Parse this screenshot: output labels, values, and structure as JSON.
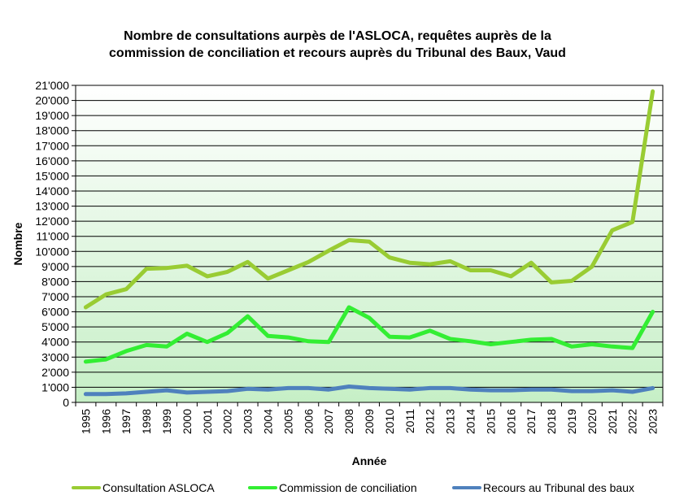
{
  "chart_data": {
    "type": "line",
    "title_lines": [
      "Nombre de consultations aurpès de l'ASLOCA, requêtes auprès de la",
      "commission de conciliation et recours auprès du Tribunal des Baux, Vaud"
    ],
    "xlabel": "Année",
    "ylabel": "Nombre",
    "ylim": [
      0,
      21000
    ],
    "ytick_step": 1000,
    "ytick_labels": [
      "0",
      "1'000",
      "2'000",
      "3'000",
      "4'000",
      "5'000",
      "6'000",
      "7'000",
      "8'000",
      "9'000",
      "10'000",
      "11'000",
      "12'000",
      "13'000",
      "14'000",
      "15'000",
      "16'000",
      "17'000",
      "18'000",
      "19'000",
      "20'000",
      "21'000"
    ],
    "grid": true,
    "legend_position": "bottom",
    "categories": [
      "1995",
      "1996",
      "1997",
      "1998",
      "1999",
      "2000",
      "2001",
      "2002",
      "2003",
      "2004",
      "2005",
      "2006",
      "2007",
      "2008",
      "2009",
      "2010",
      "2011",
      "2012",
      "2013",
      "2014",
      "2015",
      "2016",
      "2017",
      "2018",
      "2019",
      "2020",
      "2021",
      "2022",
      "2023"
    ],
    "series": [
      {
        "name": "Consultation ASLOCA",
        "color": "#99CC33",
        "values": [
          6300,
          7150,
          7500,
          8850,
          8900,
          9050,
          8350,
          8650,
          9300,
          8200,
          8750,
          9300,
          10050,
          10750,
          10650,
          9600,
          9250,
          9150,
          9350,
          8750,
          8750,
          8350,
          9250,
          7950,
          8050,
          9000,
          11400,
          11950,
          20600
        ]
      },
      {
        "name": "Commission de conciliation",
        "color": "#33EE33",
        "values": [
          2700,
          2850,
          3400,
          3800,
          3700,
          4550,
          4000,
          4600,
          5700,
          4400,
          4300,
          4050,
          4000,
          6300,
          5600,
          4350,
          4300,
          4750,
          4200,
          4050,
          3850,
          4000,
          4150,
          4200,
          3700,
          3850,
          3700,
          3600,
          6000
        ]
      },
      {
        "name": "Recours au Tribunal des baux",
        "color": "#4F81BD",
        "values": [
          550,
          550,
          600,
          700,
          800,
          650,
          700,
          750,
          900,
          850,
          950,
          950,
          850,
          1050,
          950,
          900,
          850,
          950,
          950,
          850,
          800,
          800,
          850,
          850,
          750,
          750,
          800,
          700,
          950
        ]
      }
    ],
    "plot_background": {
      "top_color": "#FFFFFF",
      "bottom_color": "#C6EFC6"
    }
  }
}
